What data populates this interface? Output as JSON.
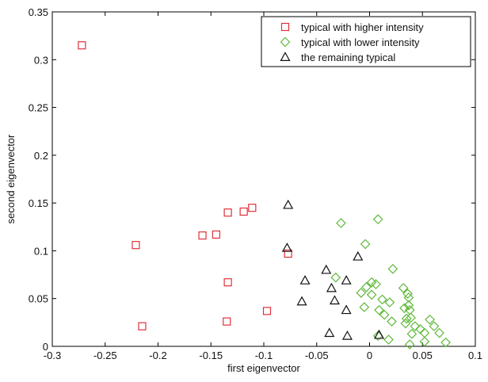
{
  "chart_data": {
    "type": "scatter",
    "title": "",
    "xlabel": "first eigenvector",
    "ylabel": "second eigenvector",
    "xlim": [
      -0.3,
      0.1
    ],
    "ylim": [
      0,
      0.35
    ],
    "xticks": [
      -0.3,
      -0.25,
      -0.2,
      -0.15,
      -0.1,
      -0.05,
      0,
      0.05,
      0.1
    ],
    "xtick_labels": [
      "-0.3",
      "-0.25",
      "-0.2",
      "-0.15",
      "-0.1",
      "-0.05",
      "0",
      "0.05",
      "0.1"
    ],
    "yticks": [
      0,
      0.05,
      0.1,
      0.15,
      0.2,
      0.25,
      0.3,
      0.35
    ],
    "ytick_labels": [
      "0",
      "0.05",
      "0.1",
      "0.15",
      "0.2",
      "0.25",
      "0.3",
      "0.35"
    ],
    "grid": false,
    "legend_position": "top-right",
    "series": [
      {
        "name": "typical with higher intensity",
        "marker": "square",
        "color": "#e0303a",
        "points": [
          [
            -0.272,
            0.315
          ],
          [
            -0.221,
            0.106
          ],
          [
            -0.215,
            0.021
          ],
          [
            -0.158,
            0.116
          ],
          [
            -0.145,
            0.117
          ],
          [
            -0.134,
            0.14
          ],
          [
            -0.119,
            0.141
          ],
          [
            -0.111,
            0.145
          ],
          [
            -0.134,
            0.067
          ],
          [
            -0.135,
            0.026
          ],
          [
            -0.097,
            0.037
          ],
          [
            -0.077,
            0.097
          ]
        ]
      },
      {
        "name": "typical with lower intensity",
        "marker": "diamond",
        "color": "#5fb83a",
        "points": [
          [
            -0.027,
            0.129
          ],
          [
            0.008,
            0.133
          ],
          [
            -0.004,
            0.107
          ],
          [
            0.022,
            0.081
          ],
          [
            -0.032,
            0.072
          ],
          [
            0.002,
            0.067
          ],
          [
            0.006,
            0.065
          ],
          [
            -0.003,
            0.062
          ],
          [
            -0.008,
            0.056
          ],
          [
            0.002,
            0.054
          ],
          [
            0.012,
            0.049
          ],
          [
            0.032,
            0.061
          ],
          [
            0.036,
            0.055
          ],
          [
            0.037,
            0.051
          ],
          [
            0.019,
            0.046
          ],
          [
            0.037,
            0.043
          ],
          [
            -0.005,
            0.041
          ],
          [
            0.009,
            0.038
          ],
          [
            0.033,
            0.04
          ],
          [
            0.038,
            0.038
          ],
          [
            0.014,
            0.033
          ],
          [
            0.035,
            0.029
          ],
          [
            0.039,
            0.03
          ],
          [
            0.021,
            0.026
          ],
          [
            0.034,
            0.024
          ],
          [
            0.057,
            0.028
          ],
          [
            0.043,
            0.021
          ],
          [
            0.048,
            0.018
          ],
          [
            0.061,
            0.021
          ],
          [
            0.052,
            0.014
          ],
          [
            0.066,
            0.014
          ],
          [
            0.008,
            0.011
          ],
          [
            0.04,
            0.013
          ],
          [
            0.018,
            0.007
          ],
          [
            0.072,
            0.004
          ],
          [
            0.038,
            0.002
          ],
          [
            0.052,
            0.005
          ]
        ]
      },
      {
        "name": "the remaining typical",
        "marker": "triangle",
        "color": "#111111",
        "points": [
          [
            -0.077,
            0.148
          ],
          [
            -0.078,
            0.103
          ],
          [
            -0.011,
            0.094
          ],
          [
            -0.041,
            0.08
          ],
          [
            -0.061,
            0.069
          ],
          [
            -0.022,
            0.069
          ],
          [
            -0.036,
            0.061
          ],
          [
            -0.033,
            0.048
          ],
          [
            -0.064,
            0.047
          ],
          [
            -0.022,
            0.038
          ],
          [
            -0.038,
            0.014
          ],
          [
            -0.021,
            0.011
          ],
          [
            0.009,
            0.012
          ]
        ]
      }
    ]
  }
}
